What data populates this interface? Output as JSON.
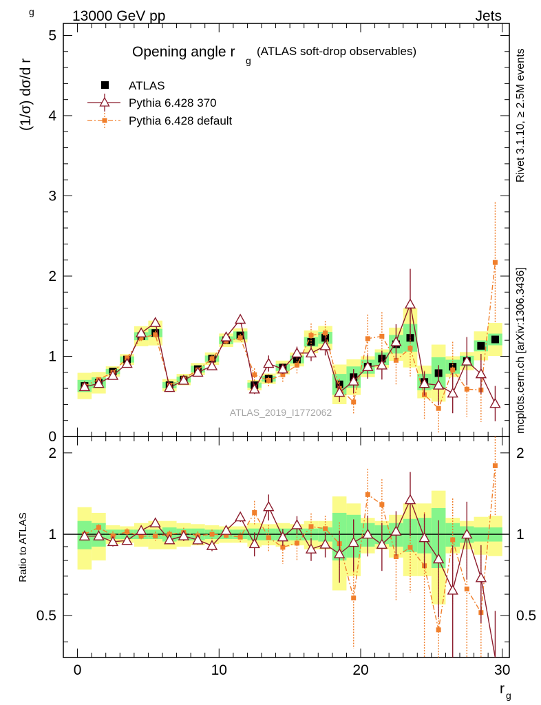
{
  "header": {
    "left": "13000 GeV pp",
    "right": "Jets"
  },
  "side": {
    "rivet": "Rivet 3.1.10, ≥ 2.5M events",
    "mcplots": "mcplots.cern.ch [arXiv:1306.3436]"
  },
  "chart_data": {
    "type": "scatter",
    "title_main": "Opening angle r",
    "title_sub": "g",
    "title_note": "(ATLAS soft-drop observables)",
    "watermark": "ATLAS_2019_I1772062",
    "ylabel_main": "(1/σ) dσ/d r",
    "ylabel_sub": "g",
    "ylabel_ratio": "Ratio to ATLAS",
    "xlabel_main": "r",
    "xlabel_sub": "g",
    "xlim": [
      -1,
      30.5
    ],
    "ylim": [
      0,
      5.15
    ],
    "ratio_ylim": [
      0.35,
      2.3
    ],
    "x_ticks": [
      "0",
      "10",
      "20",
      "30"
    ],
    "y_ticks": [
      "0",
      "1",
      "2",
      "3",
      "4",
      "5"
    ],
    "ratio_ticks": [
      "0.5",
      "1",
      "2"
    ],
    "x": [
      0.5,
      1.5,
      2.5,
      3.5,
      4.5,
      5.5,
      6.5,
      7.5,
      8.5,
      9.5,
      10.5,
      11.5,
      12.5,
      13.5,
      14.5,
      15.5,
      16.5,
      17.5,
      18.5,
      19.5,
      20.5,
      21.5,
      22.5,
      23.5,
      24.5,
      25.5,
      26.5,
      27.5,
      28.5,
      29.5
    ],
    "colors": {
      "data": "#000000",
      "pythia370": "#8b1a2b",
      "pythia_default": "#f07f2c",
      "band_inner": "#85f58b",
      "band_outer": "#fbfb8a"
    },
    "series": [
      {
        "name": "ATLAS",
        "values": [
          0.63,
          0.67,
          0.81,
          0.96,
          1.25,
          1.29,
          0.64,
          0.71,
          0.84,
          0.97,
          1.2,
          1.26,
          0.64,
          0.72,
          0.86,
          0.96,
          1.18,
          1.23,
          0.65,
          0.74,
          0.87,
          0.97,
          1.15,
          1.23,
          0.68,
          0.79,
          0.87,
          0.94,
          1.13,
          1.21
        ],
        "band_inner": [
          0.12,
          0.1,
          0.04,
          0.04,
          0.04,
          0.04,
          0.06,
          0.05,
          0.05,
          0.04,
          0.04,
          0.04,
          0.05,
          0.05,
          0.05,
          0.05,
          0.05,
          0.06,
          0.2,
          0.18,
          0.1,
          0.08,
          0.1,
          0.14,
          0.15,
          0.25,
          0.1,
          0.07,
          0.06,
          0.06
        ],
        "band_outer": [
          0.26,
          0.2,
          0.08,
          0.07,
          0.1,
          0.12,
          0.12,
          0.1,
          0.09,
          0.08,
          0.07,
          0.07,
          0.1,
          0.09,
          0.1,
          0.09,
          0.12,
          0.12,
          0.38,
          0.3,
          0.15,
          0.12,
          0.18,
          0.3,
          0.3,
          0.45,
          0.15,
          0.12,
          0.16,
          0.17
        ]
      },
      {
        "name": "Pythia 6.428 370",
        "values": [
          0.62,
          0.66,
          0.76,
          0.91,
          1.29,
          1.42,
          0.61,
          0.7,
          0.8,
          0.88,
          1.24,
          1.46,
          0.59,
          0.91,
          0.84,
          1.04,
          1.04,
          1.13,
          0.55,
          0.69,
          0.87,
          0.89,
          1.18,
          1.65,
          0.66,
          0.64,
          0.54,
          0.94,
          0.78,
          0.41
        ],
        "errors": [
          0.02,
          0.02,
          0.03,
          0.03,
          0.04,
          0.05,
          0.02,
          0.03,
          0.03,
          0.04,
          0.04,
          0.06,
          0.06,
          0.1,
          0.06,
          0.08,
          0.1,
          0.12,
          0.12,
          0.15,
          0.15,
          0.18,
          0.22,
          0.44,
          0.15,
          0.25,
          0.25,
          0.3,
          0.25,
          0.22
        ]
      },
      {
        "name": "Pythia 6.428 default",
        "values": [
          0.63,
          0.71,
          0.8,
          0.98,
          1.23,
          1.27,
          0.64,
          0.72,
          0.83,
          0.97,
          1.19,
          1.23,
          0.77,
          0.7,
          0.77,
          0.89,
          1.26,
          1.29,
          0.6,
          0.43,
          1.22,
          1.25,
          0.95,
          1.1,
          0.52,
          0.35,
          0.83,
          0.59,
          0.58,
          2.17
        ],
        "errors": [
          0.02,
          0.02,
          0.03,
          0.03,
          0.04,
          0.05,
          0.02,
          0.03,
          0.03,
          0.04,
          0.04,
          0.05,
          0.08,
          0.08,
          0.1,
          0.12,
          0.15,
          0.15,
          0.12,
          0.15,
          0.3,
          0.3,
          0.3,
          0.35,
          0.3,
          0.3,
          0.35,
          0.35,
          0.4,
          0.75
        ]
      }
    ]
  }
}
